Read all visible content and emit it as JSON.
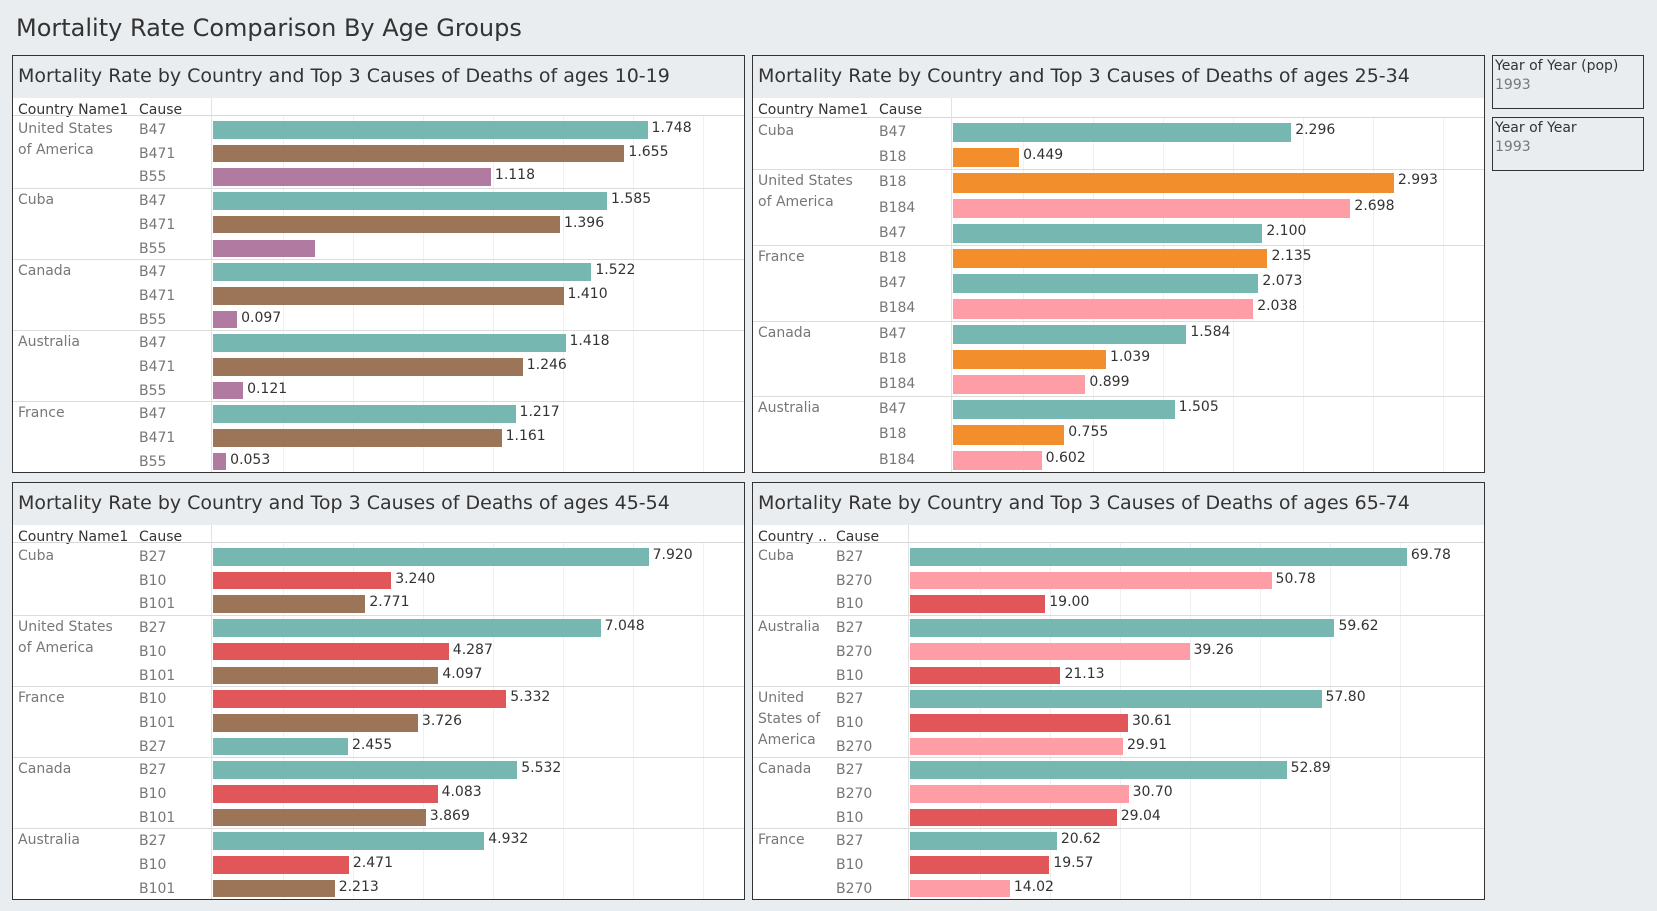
{
  "dashboard_title": "Mortality Rate Comparison By Age Groups",
  "filters": [
    {
      "title": "Year of Year (pop)",
      "value": "1993"
    },
    {
      "title": "Year of Year",
      "value": "1993"
    }
  ],
  "colors": {
    "B47": "#76b7b2",
    "B471": "#9c7559",
    "B55": "#b07aa1",
    "B18": "#f28e2b",
    "B184": "#ff9da7",
    "B27": "#76b7b2",
    "B10": "#e15759",
    "B101": "#9c7559",
    "B270": "#ff9da7"
  },
  "chart_data": [
    {
      "type": "bar",
      "title": "Mortality Rate by Country and Top 3 Causes of Deaths of ages 10-19",
      "country_header": "Country Name1",
      "cause_header": "Cause",
      "groups": [
        {
          "country": "United States\nof America",
          "bars": [
            {
              "cause": "B47",
              "value": 1.748,
              "label": "1.748"
            },
            {
              "cause": "B471",
              "value": 1.655,
              "label": "1.655"
            },
            {
              "cause": "B55",
              "value": 1.118,
              "label": "1.118"
            }
          ]
        },
        {
          "country": "Cuba",
          "bars": [
            {
              "cause": "B47",
              "value": 1.585,
              "label": "1.585"
            },
            {
              "cause": "B471",
              "value": 1.396,
              "label": "1.396"
            },
            {
              "cause": "B55",
              "value": 0.41,
              "label": ""
            }
          ]
        },
        {
          "country": "Canada",
          "bars": [
            {
              "cause": "B47",
              "value": 1.522,
              "label": "1.522"
            },
            {
              "cause": "B471",
              "value": 1.41,
              "label": "1.410"
            },
            {
              "cause": "B55",
              "value": 0.097,
              "label": "0.097"
            }
          ]
        },
        {
          "country": "Australia",
          "bars": [
            {
              "cause": "B47",
              "value": 1.418,
              "label": "1.418"
            },
            {
              "cause": "B471",
              "value": 1.246,
              "label": "1.246"
            },
            {
              "cause": "B55",
              "value": 0.121,
              "label": "0.121"
            }
          ]
        },
        {
          "country": "France",
          "bars": [
            {
              "cause": "B47",
              "value": 1.217,
              "label": "1.217"
            },
            {
              "cause": "B471",
              "value": 1.161,
              "label": "1.161"
            },
            {
              "cause": "B55",
              "value": 0.053,
              "label": "0.053"
            }
          ]
        }
      ]
    },
    {
      "type": "bar",
      "title": "Mortality Rate by Country and Top 3 Causes of Deaths of ages 25-34",
      "country_header": "Country Name1",
      "cause_header": "Cause",
      "groups": [
        {
          "country": "Cuba",
          "bars": [
            {
              "cause": "B47",
              "value": 2.296,
              "label": "2.296"
            },
            {
              "cause": "B18",
              "value": 0.449,
              "label": "0.449"
            }
          ]
        },
        {
          "country": "United States\nof America",
          "bars": [
            {
              "cause": "B18",
              "value": 2.993,
              "label": "2.993"
            },
            {
              "cause": "B184",
              "value": 2.698,
              "label": "2.698"
            },
            {
              "cause": "B47",
              "value": 2.1,
              "label": "2.100"
            }
          ]
        },
        {
          "country": "France",
          "bars": [
            {
              "cause": "B18",
              "value": 2.135,
              "label": "2.135"
            },
            {
              "cause": "B47",
              "value": 2.073,
              "label": "2.073"
            },
            {
              "cause": "B184",
              "value": 2.038,
              "label": "2.038"
            }
          ]
        },
        {
          "country": "Canada",
          "bars": [
            {
              "cause": "B47",
              "value": 1.584,
              "label": "1.584"
            },
            {
              "cause": "B18",
              "value": 1.039,
              "label": "1.039"
            },
            {
              "cause": "B184",
              "value": 0.899,
              "label": "0.899"
            }
          ]
        },
        {
          "country": "Australia",
          "bars": [
            {
              "cause": "B47",
              "value": 1.505,
              "label": "1.505"
            },
            {
              "cause": "B18",
              "value": 0.755,
              "label": "0.755"
            },
            {
              "cause": "B184",
              "value": 0.602,
              "label": "0.602"
            }
          ]
        }
      ]
    },
    {
      "type": "bar",
      "title": "Mortality Rate by Country and Top 3 Causes of Deaths of ages 45-54",
      "country_header": "Country Name1",
      "cause_header": "Cause",
      "groups": [
        {
          "country": "Cuba",
          "bars": [
            {
              "cause": "B27",
              "value": 7.92,
              "label": "7.920"
            },
            {
              "cause": "B10",
              "value": 3.24,
              "label": "3.240"
            },
            {
              "cause": "B101",
              "value": 2.771,
              "label": "2.771"
            }
          ]
        },
        {
          "country": "United States\nof America",
          "bars": [
            {
              "cause": "B27",
              "value": 7.048,
              "label": "7.048"
            },
            {
              "cause": "B10",
              "value": 4.287,
              "label": "4.287"
            },
            {
              "cause": "B101",
              "value": 4.097,
              "label": "4.097"
            }
          ]
        },
        {
          "country": "France",
          "bars": [
            {
              "cause": "B10",
              "value": 5.332,
              "label": "5.332"
            },
            {
              "cause": "B101",
              "value": 3.726,
              "label": "3.726"
            },
            {
              "cause": "B27",
              "value": 2.455,
              "label": "2.455"
            }
          ]
        },
        {
          "country": "Canada",
          "bars": [
            {
              "cause": "B27",
              "value": 5.532,
              "label": "5.532"
            },
            {
              "cause": "B10",
              "value": 4.083,
              "label": "4.083"
            },
            {
              "cause": "B101",
              "value": 3.869,
              "label": "3.869"
            }
          ]
        },
        {
          "country": "Australia",
          "bars": [
            {
              "cause": "B27",
              "value": 4.932,
              "label": "4.932"
            },
            {
              "cause": "B10",
              "value": 2.471,
              "label": "2.471"
            },
            {
              "cause": "B101",
              "value": 2.213,
              "label": "2.213"
            }
          ]
        }
      ]
    },
    {
      "type": "bar",
      "title": "Mortality Rate by Country and Top 3 Causes of Deaths of ages 65-74",
      "country_header": "Country ..",
      "cause_header": "Cause",
      "groups": [
        {
          "country": "Cuba",
          "bars": [
            {
              "cause": "B27",
              "value": 69.78,
              "label": "69.78"
            },
            {
              "cause": "B270",
              "value": 50.78,
              "label": "50.78"
            },
            {
              "cause": "B10",
              "value": 19.0,
              "label": "19.00"
            }
          ]
        },
        {
          "country": "Australia",
          "bars": [
            {
              "cause": "B27",
              "value": 59.62,
              "label": "59.62"
            },
            {
              "cause": "B270",
              "value": 39.26,
              "label": "39.26"
            },
            {
              "cause": "B10",
              "value": 21.13,
              "label": "21.13"
            }
          ]
        },
        {
          "country": "United\nStates of\nAmerica",
          "bars": [
            {
              "cause": "B27",
              "value": 57.8,
              "label": "57.80"
            },
            {
              "cause": "B10",
              "value": 30.61,
              "label": "30.61"
            },
            {
              "cause": "B270",
              "value": 29.91,
              "label": "29.91"
            }
          ]
        },
        {
          "country": "Canada",
          "bars": [
            {
              "cause": "B27",
              "value": 52.89,
              "label": "52.89"
            },
            {
              "cause": "B270",
              "value": 30.7,
              "label": "30.70"
            },
            {
              "cause": "B10",
              "value": 29.04,
              "label": "29.04"
            }
          ]
        },
        {
          "country": "France",
          "bars": [
            {
              "cause": "B27",
              "value": 20.62,
              "label": "20.62"
            },
            {
              "cause": "B10",
              "value": 19.57,
              "label": "19.57"
            },
            {
              "cause": "B270",
              "value": 14.02,
              "label": "14.02"
            }
          ]
        }
      ]
    }
  ]
}
